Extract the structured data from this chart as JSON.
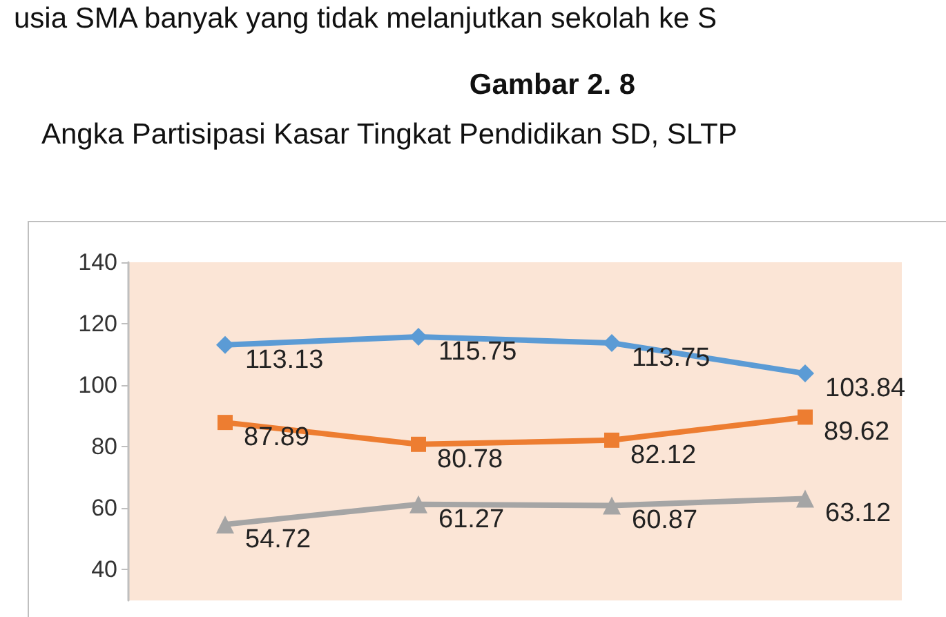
{
  "chart_data": {
    "type": "line",
    "title": "Gambar 2. 8",
    "subtitle": "Angka Partisipasi Kasar Tingkat Pendidikan SD, SLTP",
    "annotations": [
      "usia SMA banyak yang tidak melanjutkan sekolah ke S"
    ],
    "categories": [
      null,
      null,
      null,
      null
    ],
    "series": [
      {
        "color": "#5b9bd5",
        "marker": "diamond",
        "values": [
          113.13,
          115.75,
          113.75,
          103.84
        ]
      },
      {
        "color": "#ed7d31",
        "marker": "square",
        "values": [
          87.89,
          80.78,
          82.12,
          89.62
        ]
      },
      {
        "color": "#a5a5a5",
        "marker": "triangle",
        "values": [
          54.72,
          61.27,
          60.87,
          63.12
        ]
      }
    ],
    "ylim": [
      30,
      140
    ],
    "yticks": [
      40,
      60,
      80,
      100,
      120,
      140
    ],
    "grid": false,
    "data_labels": true,
    "tick_labels": "y"
  }
}
